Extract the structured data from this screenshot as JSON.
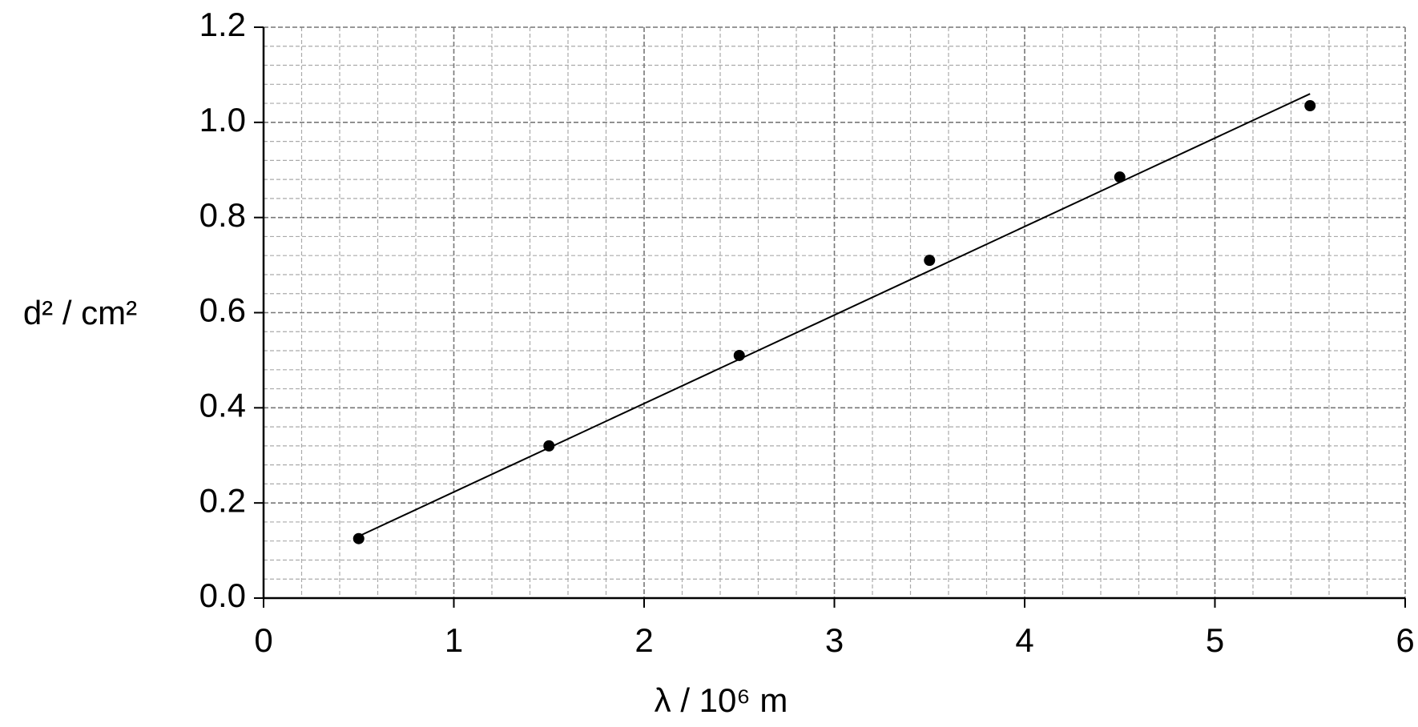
{
  "chart_data": {
    "type": "scatter",
    "xlabel": "λ / 10⁶  m",
    "ylabel": "d² / cm²",
    "x": [
      0.5,
      1.5,
      2.5,
      3.5,
      4.5,
      5.5
    ],
    "values": [
      0.125,
      0.32,
      0.51,
      0.71,
      0.885,
      1.035
    ],
    "color": "#000000",
    "fit_line": {
      "x": [
        0.5,
        5.5
      ],
      "values": [
        0.13,
        1.06
      ],
      "color": "#000000"
    },
    "xlim": [
      0,
      6
    ],
    "xticks": [
      0,
      1,
      2,
      3,
      4,
      5,
      6
    ],
    "ylim": [
      0,
      1.2
    ],
    "yticks": [
      {
        "value": 0,
        "label": "0.0"
      },
      0.2,
      0.4,
      0.6,
      0.8,
      {
        "value": 1,
        "label": "1.0"
      },
      1.2
    ],
    "grid": true,
    "minor_grid": true
  }
}
